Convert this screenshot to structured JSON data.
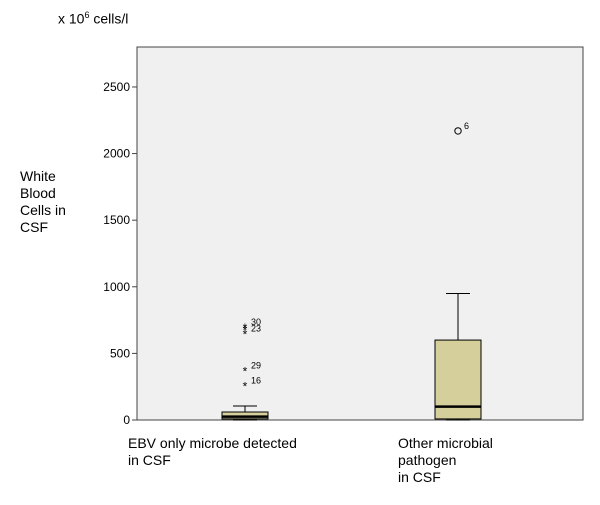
{
  "chart_data": {
    "type": "boxplot",
    "unit_label": {
      "prefix": "x 10",
      "exponent": "6",
      "suffix": " cells/l"
    },
    "ylabel_lines": [
      "White",
      "Blood",
      "Cells in",
      "CSF"
    ],
    "ylim": [
      0,
      2800
    ],
    "yticks": [
      0,
      500,
      1000,
      1500,
      2000,
      2500
    ],
    "categories": [
      {
        "label_lines": [
          "EBV only microbe detected",
          "in CSF"
        ]
      },
      {
        "label_lines": [
          "Other microbial",
          "pathogen",
          "in CSF"
        ]
      }
    ],
    "boxes": [
      {
        "min": 0,
        "q1": 8,
        "median": 25,
        "q3": 60,
        "max": 105,
        "outliers": [
          {
            "value": 700,
            "marker": "star",
            "label": "30"
          },
          {
            "value": 680,
            "marker": "star",
            "label": ""
          },
          {
            "value": 650,
            "marker": "star",
            "label": "23"
          },
          {
            "value": 370,
            "marker": "star",
            "label": "29"
          },
          {
            "value": 260,
            "marker": "star",
            "label": "16"
          }
        ]
      },
      {
        "min": 0,
        "q1": 8,
        "median": 100,
        "q3": 600,
        "max": 950,
        "outliers": [
          {
            "value": 2170,
            "marker": "circle",
            "label": "6"
          }
        ]
      }
    ],
    "colors": {
      "plot_background": "#f0f0f0",
      "box_fill": "#d4cf9b",
      "frame": "#444444"
    },
    "grid": false
  }
}
